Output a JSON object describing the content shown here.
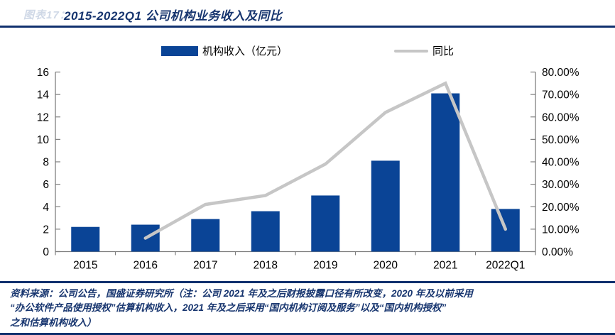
{
  "header": {
    "figure_label": "图表17：",
    "title": "2015-2022Q1 公司机构业务收入及同比"
  },
  "legend": [
    {
      "label": "机构收入（亿元）",
      "swatch": "bar-swatch",
      "color": "#0a4496"
    },
    {
      "label": "同比",
      "swatch": "line-swatch",
      "color": "#c6c6c6"
    }
  ],
  "chart_data": {
    "type": "bar",
    "subtype": "bar+line-dual-axis",
    "title": "2015-2022Q1 公司机构业务收入及同比",
    "categories": [
      "2015",
      "2016",
      "2017",
      "2018",
      "2019",
      "2020",
      "2021",
      "2022Q1"
    ],
    "series": [
      {
        "name": "机构收入（亿元）",
        "type": "bar",
        "axis": "left",
        "color": "#0a4496",
        "values": [
          2.2,
          2.4,
          2.9,
          3.6,
          5.0,
          8.1,
          14.1,
          3.8
        ]
      },
      {
        "name": "同比",
        "type": "line",
        "axis": "right",
        "color": "#c6c6c6",
        "values": [
          null,
          6,
          21,
          25,
          39,
          62,
          75,
          10
        ],
        "unit": "%"
      }
    ],
    "left_axis": {
      "min": 0,
      "max": 16,
      "step": 2,
      "labels": [
        "0",
        "2",
        "4",
        "6",
        "8",
        "10",
        "12",
        "14",
        "16"
      ]
    },
    "right_axis": {
      "min": 0,
      "max": 80,
      "step": 10,
      "labels": [
        "0.00%",
        "10.00%",
        "20.00%",
        "30.00%",
        "40.00%",
        "50.00%",
        "60.00%",
        "70.00%",
        "80.00%"
      ]
    },
    "grid": false,
    "legend_position": "top",
    "axis_color": "#7f7f7f",
    "text_color": "#000000"
  },
  "footer": {
    "source_note_lines": [
      "资料来源：公司公告，国盛证券研究所（注：公司 2021 年及之后财报披露口径有所改变，2020 年及以前采用",
      "“办公软件产品使用授权”估算机构收入，2021 年及之后采用“国内机构订阅及服务”以及“国内机构授权”",
      "之和估算机构收入）"
    ]
  }
}
